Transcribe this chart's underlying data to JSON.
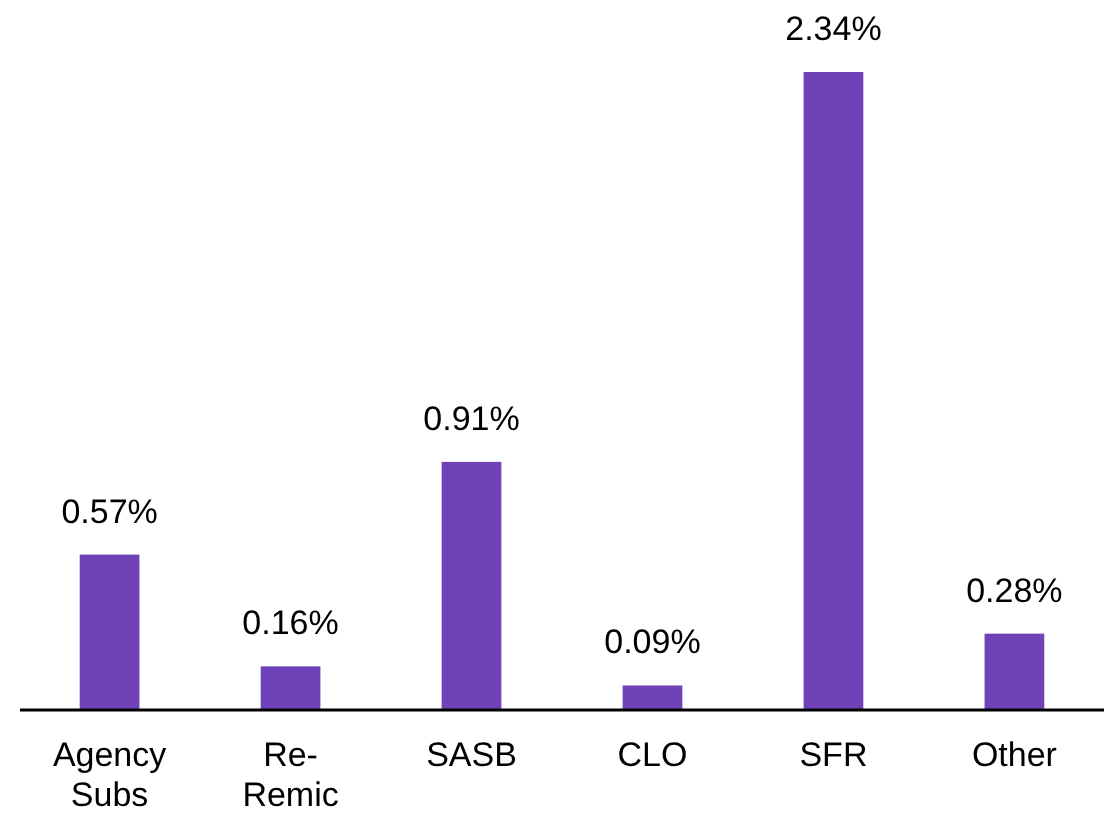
{
  "chart_data": {
    "type": "bar",
    "categories": [
      "Agency Subs",
      "Re-Remic",
      "SASB",
      "CLO",
      "SFR",
      "Other"
    ],
    "values": [
      0.57,
      0.16,
      0.91,
      0.09,
      2.34,
      0.28
    ],
    "value_labels": [
      "0.57%",
      "0.16%",
      "0.91%",
      "0.09%",
      "2.34%",
      "0.28%"
    ],
    "color": "#6f42b8"
  }
}
